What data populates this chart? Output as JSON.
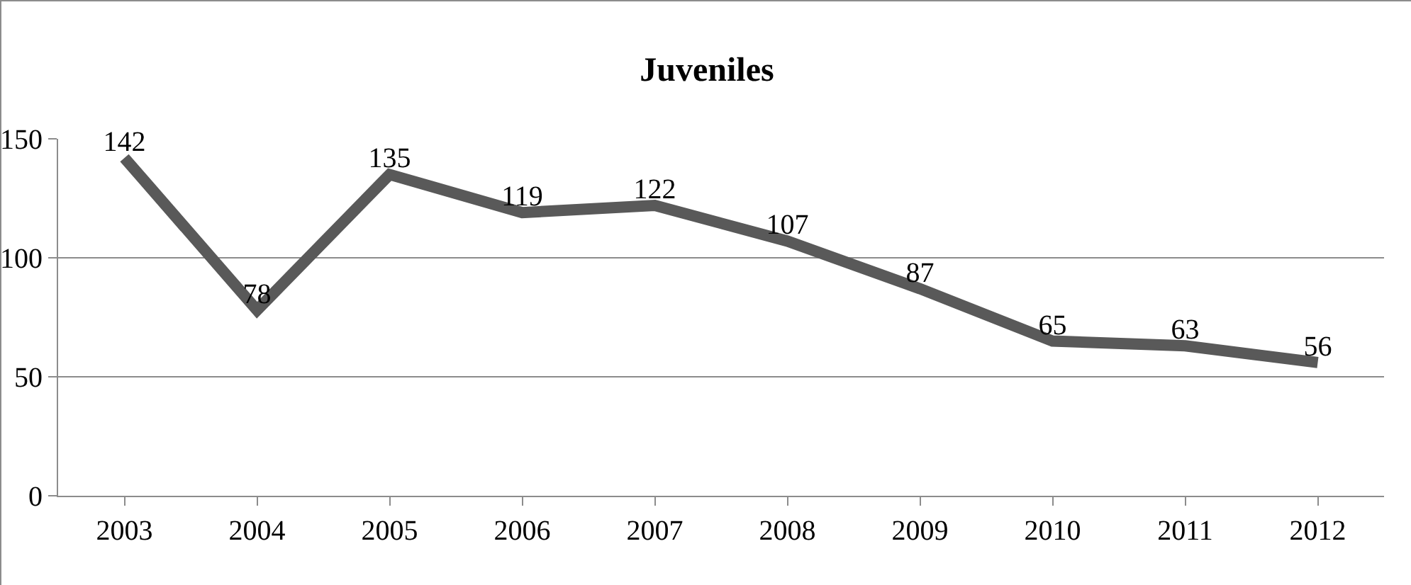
{
  "chart_data": {
    "type": "line",
    "title": "Juveniles",
    "categories": [
      "2003",
      "2004",
      "2005",
      "2006",
      "2007",
      "2008",
      "2009",
      "2010",
      "2011",
      "2012"
    ],
    "series": [
      {
        "color": "#595959",
        "values": [
          142,
          78,
          135,
          119,
          122,
          107,
          87,
          65,
          63,
          56
        ]
      }
    ],
    "ylim": [
      0,
      150
    ],
    "yticks": [
      0,
      50,
      100,
      150
    ],
    "grid": "y",
    "marker": "none",
    "line_style": "solid",
    "data_labels": true
  }
}
